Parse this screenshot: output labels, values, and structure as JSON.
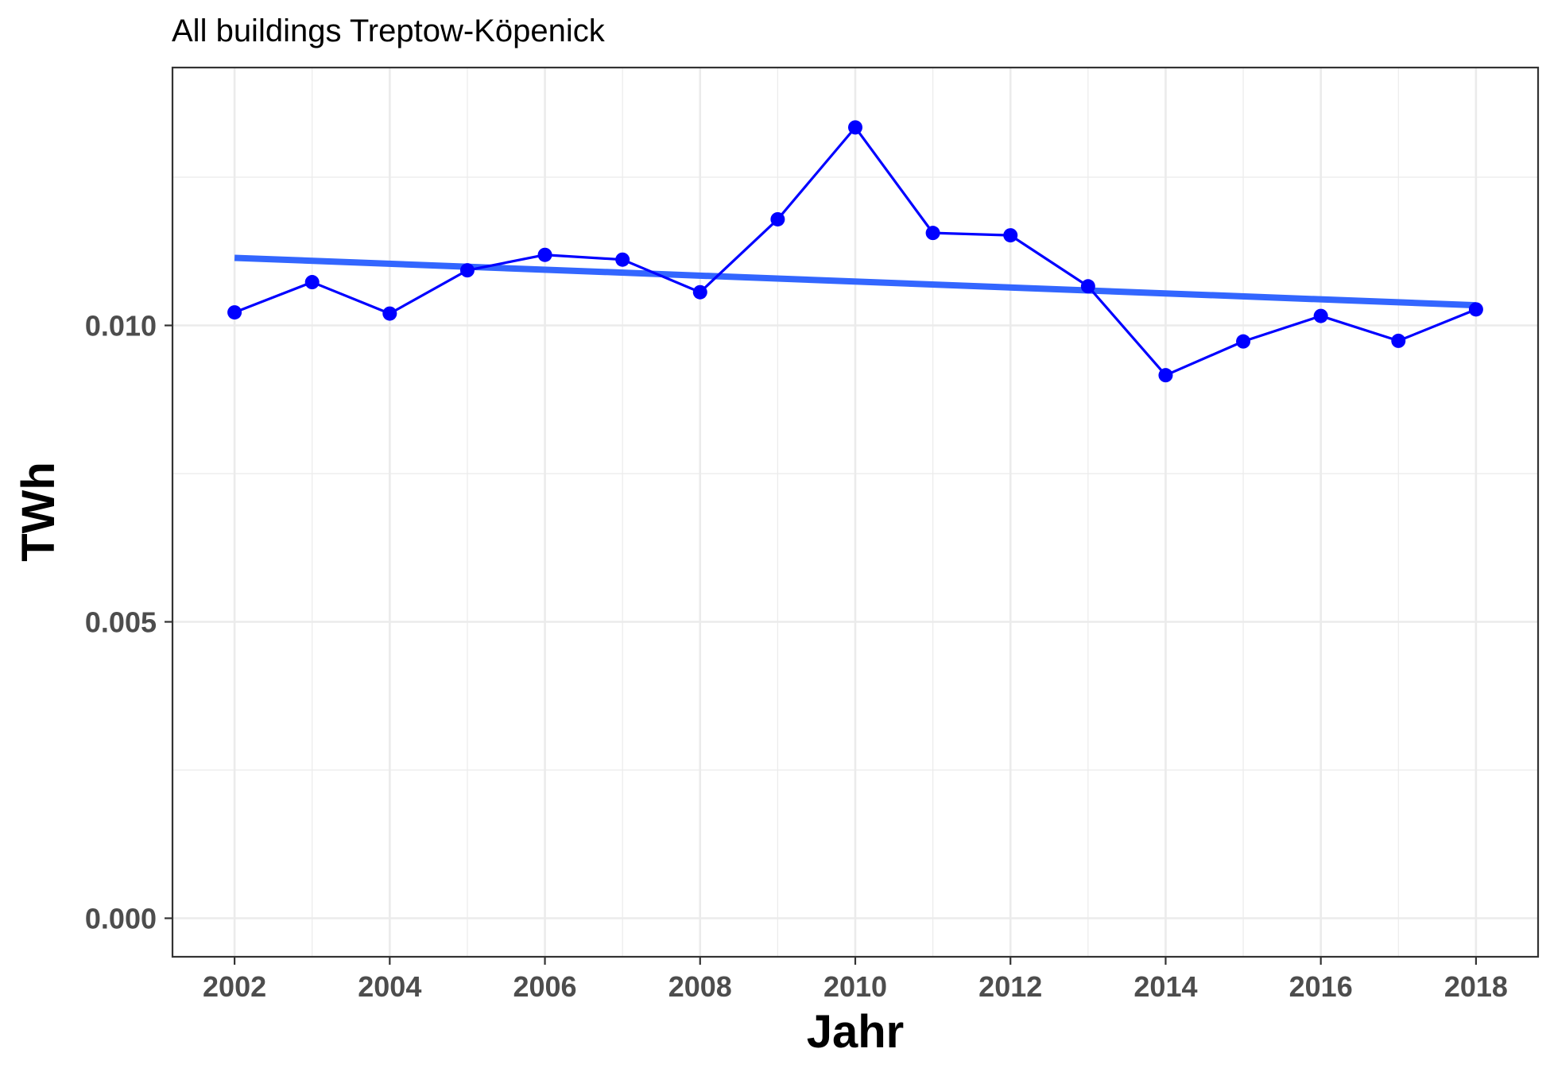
{
  "chart_data": {
    "type": "line",
    "title": "All buildings Treptow-Köpenick",
    "xlabel": "Jahr",
    "ylabel": "TWh",
    "xlim": [
      2001.2,
      2018.8
    ],
    "ylim": [
      -0.00065,
      0.01435
    ],
    "x_ticks": [
      "2002",
      "2004",
      "2006",
      "2008",
      "2010",
      "2012",
      "2014",
      "2016",
      "2018"
    ],
    "y_ticks": [
      "0.000",
      "0.005",
      "0.010"
    ],
    "grid": true,
    "legend": "none",
    "series": [
      {
        "x": [
          2002,
          2003,
          2004,
          2005,
          2006,
          2007,
          2008,
          2009,
          2010,
          2011,
          2012,
          2013,
          2014,
          2015,
          2016,
          2017,
          2018
        ],
        "y": [
          0.01022,
          0.01073,
          0.0102,
          0.01093,
          0.01119,
          0.01111,
          0.01056,
          0.01179,
          0.01334,
          0.01156,
          0.01152,
          0.01066,
          0.00916,
          0.00973,
          0.01016,
          0.00974,
          0.01027
        ],
        "color": "#0000ff"
      }
    ],
    "trend_line": {
      "x": [
        2002,
        2018
      ],
      "y": [
        0.01114,
        0.01034
      ],
      "color": "#3366ff"
    }
  }
}
